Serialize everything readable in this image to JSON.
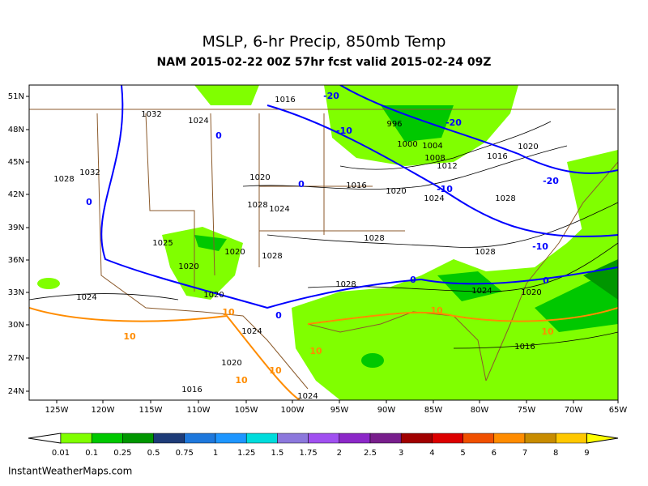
{
  "header": {
    "title": "MSLP, 6-hr Precip, 850mb Temp",
    "subtitle": "NAM 2015-02-22 00Z 57hr fcst valid 2015-02-24 09Z"
  },
  "latitudes": [
    "51N",
    "48N",
    "45N",
    "42N",
    "39N",
    "36N",
    "33N",
    "30N",
    "27N",
    "24N"
  ],
  "longitudes": [
    "125W",
    "120W",
    "115W",
    "110W",
    "105W",
    "100W",
    "95W",
    "90W",
    "85W",
    "80W",
    "75W",
    "70W",
    "65W"
  ],
  "isobar_labels": [
    "1016",
    "1032",
    "1024",
    "996",
    "1000",
    "1004",
    "1008",
    "1012",
    "1016",
    "1020",
    "1028",
    "1032",
    "1020",
    "1016",
    "1020",
    "1024",
    "1028",
    "1028",
    "1024",
    "1028",
    "1028",
    "1025",
    "1020",
    "1028",
    "1020",
    "1028",
    "1024",
    "1020",
    "1024",
    "1020",
    "1024",
    "1016",
    "1020",
    "1016",
    "1024"
  ],
  "cold_temp_labels": [
    "-20",
    "-10",
    "-20",
    "-10",
    "-20",
    "-10",
    "0",
    "0",
    "0",
    "0",
    "0",
    "0"
  ],
  "warm_temp_labels": [
    "10",
    "10",
    "10",
    "10",
    "10",
    "10",
    "10"
  ],
  "colorbar": {
    "labels": [
      "0.01",
      "0.1",
      "0.25",
      "0.5",
      "0.75",
      "1",
      "1.25",
      "1.5",
      "1.75",
      "2",
      "2.5",
      "3",
      "4",
      "5",
      "6",
      "7",
      "8",
      "9"
    ],
    "colors": [
      "#80ff00",
      "#00c800",
      "#009600",
      "#1e3c78",
      "#1e78dc",
      "#1e96ff",
      "#00dcdc",
      "#8c78dc",
      "#a050f0",
      "#8c28c8",
      "#781e8c",
      "#a00000",
      "#dc0000",
      "#f05000",
      "#ff8c00",
      "#c88c00",
      "#ffc800",
      "#ffff00"
    ]
  },
  "footer": "InstantWeatherMaps.com"
}
